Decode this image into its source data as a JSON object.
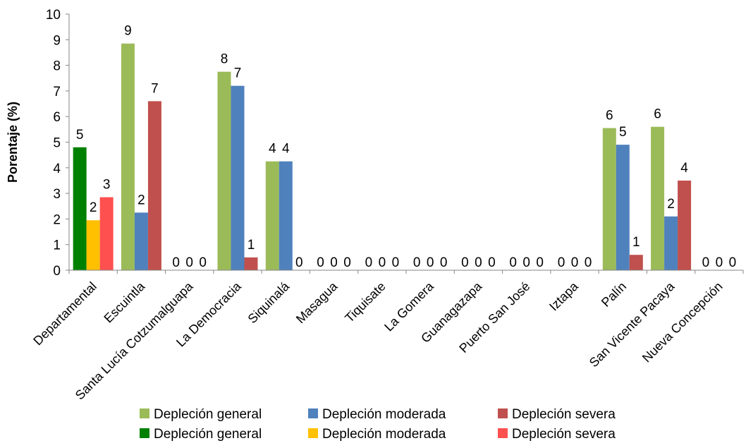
{
  "chart_data": {
    "type": "bar",
    "ylabel": "Porentaje (%)",
    "xlabel": "",
    "ylim": [
      0,
      10
    ],
    "yticks": [
      0,
      1,
      2,
      3,
      4,
      5,
      6,
      7,
      8,
      9,
      10
    ],
    "grid": false,
    "legend_position": "bottom",
    "categories": [
      "Departamental",
      "Escuintla",
      "Santa Lucía Cotzumalguapa",
      "La Democracia",
      "Siquinalá",
      "Masagua",
      "Tiquisate",
      "La Gomera",
      "Guanagazapa",
      "Puerto San José",
      "Iztapa",
      "Palín",
      "San Vicente Pacaya",
      "Nueva Concepción"
    ],
    "series": [
      {
        "name": "Depleción general",
        "color": "#9BBB59",
        "values": [
          null,
          8.85,
          0,
          7.75,
          4.25,
          0,
          0,
          0,
          0,
          0,
          0,
          5.55,
          5.6,
          0
        ],
        "labels": [
          "",
          "9",
          "0",
          "8",
          "4",
          "0",
          "0",
          "0",
          "0",
          "0",
          "0",
          "6",
          "6",
          "0"
        ]
      },
      {
        "name": "Depleción moderada",
        "color": "#4F81BD",
        "values": [
          null,
          2.25,
          0,
          7.2,
          4.25,
          0,
          0,
          0,
          0,
          0,
          0,
          4.9,
          2.1,
          0
        ],
        "labels": [
          "",
          "2",
          "0",
          "7",
          "4",
          "0",
          "0",
          "0",
          "0",
          "0",
          "0",
          "5",
          "2",
          "0"
        ]
      },
      {
        "name": "Depleción severa",
        "color": "#C0504D",
        "values": [
          null,
          6.6,
          0,
          0.5,
          null,
          0,
          0,
          0,
          0,
          0,
          0,
          0.6,
          3.5,
          0
        ],
        "labels": [
          "",
          "7",
          "0",
          "1",
          "0",
          "0",
          "0",
          "0",
          "0",
          "0",
          "0",
          "1",
          "4",
          "0"
        ]
      },
      {
        "name": "Depleción general",
        "color": "#008000",
        "values": [
          4.8,
          null,
          null,
          null,
          null,
          null,
          null,
          null,
          null,
          null,
          null,
          null,
          null,
          null
        ],
        "labels": [
          "5",
          "",
          "",
          "",
          "",
          "",
          "",
          "",
          "",
          "",
          "",
          "",
          "",
          ""
        ]
      },
      {
        "name": "Depleción moderada",
        "color": "#FFC000",
        "values": [
          1.95,
          null,
          null,
          null,
          null,
          null,
          null,
          null,
          null,
          null,
          null,
          null,
          null,
          null
        ],
        "labels": [
          "2",
          "",
          "",
          "",
          "",
          "",
          "",
          "",
          "",
          "",
          "",
          "",
          "",
          ""
        ]
      },
      {
        "name": "Depleción severa",
        "color": "#FF5050",
        "values": [
          2.85,
          null,
          null,
          null,
          null,
          null,
          null,
          null,
          null,
          null,
          null,
          null,
          null,
          null
        ],
        "labels": [
          "3",
          "",
          "",
          "",
          "",
          "",
          "",
          "",
          "",
          "",
          "",
          "",
          "",
          ""
        ]
      }
    ]
  }
}
